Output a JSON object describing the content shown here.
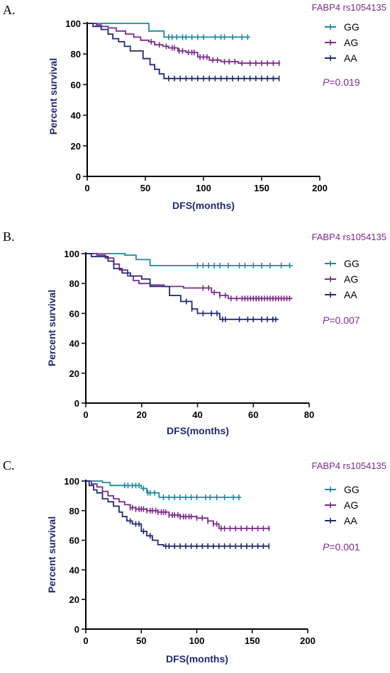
{
  "chart_data": [
    {
      "type": "line",
      "panel": "A.",
      "legend_title": "FABP4 rs1054135",
      "p_prefix": "P",
      "p_value": "=0.019",
      "xlabel": "DFS(months)",
      "ylabel": "Percent survival",
      "xlim": [
        0,
        200
      ],
      "ylim": [
        0,
        100
      ],
      "xticks": [
        0,
        50,
        100,
        150,
        200
      ],
      "yticks": [
        0,
        20,
        40,
        60,
        80,
        100
      ],
      "series": [
        {
          "name": "GG",
          "color": "#1b8a9a",
          "steps": [
            [
              0,
              100
            ],
            [
              53,
              100
            ],
            [
              53,
              95
            ],
            [
              66,
              95
            ],
            [
              66,
              91
            ],
            [
              140,
              91
            ]
          ],
          "censor": [
            70,
            73,
            77,
            82,
            85,
            90,
            95,
            100,
            110,
            115,
            118,
            125,
            133,
            138
          ]
        },
        {
          "name": "AG",
          "color": "#7b2a8a",
          "steps": [
            [
              0,
              100
            ],
            [
              8,
              100
            ],
            [
              8,
              99
            ],
            [
              12,
              99
            ],
            [
              12,
              98
            ],
            [
              18,
              98
            ],
            [
              18,
              97
            ],
            [
              25,
              97
            ],
            [
              25,
              95
            ],
            [
              33,
              95
            ],
            [
              33,
              93
            ],
            [
              40,
              93
            ],
            [
              40,
              91
            ],
            [
              46,
              91
            ],
            [
              46,
              89
            ],
            [
              53,
              89
            ],
            [
              53,
              88
            ],
            [
              58,
              88
            ],
            [
              58,
              86
            ],
            [
              65,
              86
            ],
            [
              65,
              85
            ],
            [
              70,
              85
            ],
            [
              70,
              84
            ],
            [
              78,
              84
            ],
            [
              78,
              82
            ],
            [
              85,
              82
            ],
            [
              85,
              81
            ],
            [
              95,
              81
            ],
            [
              95,
              78
            ],
            [
              105,
              78
            ],
            [
              105,
              76
            ],
            [
              115,
              76
            ],
            [
              115,
              75
            ],
            [
              130,
              75
            ],
            [
              130,
              74
            ],
            [
              166,
              74
            ]
          ],
          "censor": [
            55,
            62,
            68,
            73,
            75,
            79,
            82,
            87,
            90,
            92,
            97,
            100,
            103,
            108,
            112,
            118,
            122,
            127,
            133,
            140,
            145,
            150,
            155,
            160,
            165
          ]
        },
        {
          "name": "AA",
          "color": "#1f2a6e",
          "steps": [
            [
              0,
              100
            ],
            [
              5,
              100
            ],
            [
              5,
              98
            ],
            [
              12,
              98
            ],
            [
              12,
              96
            ],
            [
              18,
              96
            ],
            [
              18,
              93
            ],
            [
              22,
              93
            ],
            [
              22,
              90
            ],
            [
              27,
              90
            ],
            [
              27,
              88
            ],
            [
              32,
              88
            ],
            [
              32,
              85
            ],
            [
              37,
              85
            ],
            [
              37,
              82
            ],
            [
              48,
              82
            ],
            [
              48,
              77
            ],
            [
              54,
              77
            ],
            [
              54,
              73
            ],
            [
              58,
              73
            ],
            [
              58,
              70
            ],
            [
              62,
              70
            ],
            [
              62,
              67
            ],
            [
              66,
              67
            ],
            [
              66,
              64
            ],
            [
              165,
              64
            ]
          ],
          "censor": [
            70,
            75,
            80,
            85,
            90,
            95,
            100,
            105,
            110,
            115,
            120,
            125,
            130,
            135,
            140,
            145,
            150,
            155,
            160,
            165
          ]
        }
      ]
    },
    {
      "type": "line",
      "panel": "B.",
      "legend_title": "FABP4 rs1054135",
      "p_prefix": "P",
      "p_value": "=0.007",
      "xlabel": "DFS(months)",
      "ylabel": "Percent survival",
      "xlim": [
        0,
        80
      ],
      "ylim": [
        0,
        100
      ],
      "xticks": [
        0,
        20,
        40,
        60,
        80
      ],
      "yticks": [
        0,
        20,
        40,
        60,
        80,
        100
      ],
      "series": [
        {
          "name": "GG",
          "color": "#1b8a9a",
          "steps": [
            [
              0,
              100
            ],
            [
              14,
              100
            ],
            [
              14,
              99
            ],
            [
              18,
              99
            ],
            [
              18,
              96
            ],
            [
              23,
              96
            ],
            [
              23,
              92
            ],
            [
              74,
              92
            ]
          ],
          "censor": [
            40,
            42,
            44,
            46,
            48,
            51,
            55,
            57,
            60,
            63,
            66,
            70,
            73
          ]
        },
        {
          "name": "AG",
          "color": "#7b2a8a",
          "steps": [
            [
              0,
              100
            ],
            [
              4,
              100
            ],
            [
              4,
              99
            ],
            [
              7,
              99
            ],
            [
              7,
              97
            ],
            [
              10,
              97
            ],
            [
              10,
              93
            ],
            [
              12,
              93
            ],
            [
              12,
              89
            ],
            [
              15,
              89
            ],
            [
              15,
              85
            ],
            [
              17,
              85
            ],
            [
              17,
              82
            ],
            [
              19,
              82
            ],
            [
              19,
              80
            ],
            [
              23,
              80
            ],
            [
              23,
              79
            ],
            [
              28,
              79
            ],
            [
              28,
              78
            ],
            [
              35,
              78
            ],
            [
              35,
              77
            ],
            [
              45,
              77
            ],
            [
              45,
              74
            ],
            [
              48,
              74
            ],
            [
              48,
              72
            ],
            [
              51,
              72
            ],
            [
              51,
              70
            ],
            [
              74,
              70
            ]
          ],
          "censor": [
            42,
            44,
            46,
            48,
            50,
            52,
            54,
            56,
            57,
            58,
            59,
            60,
            61,
            62,
            63,
            64,
            65,
            66,
            67,
            68,
            69,
            70,
            71,
            72,
            73
          ]
        },
        {
          "name": "AA",
          "color": "#1f2a6e",
          "steps": [
            [
              0,
              100
            ],
            [
              2,
              100
            ],
            [
              2,
              98
            ],
            [
              8,
              98
            ],
            [
              8,
              95
            ],
            [
              10,
              95
            ],
            [
              10,
              90
            ],
            [
              13,
              90
            ],
            [
              13,
              87
            ],
            [
              16,
              87
            ],
            [
              16,
              85
            ],
            [
              20,
              85
            ],
            [
              20,
              83
            ],
            [
              23,
              83
            ],
            [
              23,
              78
            ],
            [
              30,
              78
            ],
            [
              30,
              72
            ],
            [
              34,
              72
            ],
            [
              34,
              68
            ],
            [
              38,
              68
            ],
            [
              38,
              63
            ],
            [
              40,
              63
            ],
            [
              40,
              60
            ],
            [
              48,
              60
            ],
            [
              48,
              56
            ],
            [
              69,
              56
            ]
          ],
          "censor": [
            36,
            38,
            42,
            45,
            47,
            49,
            50,
            55,
            58,
            60,
            63,
            65,
            67,
            68
          ]
        }
      ]
    },
    {
      "type": "line",
      "panel": "C.",
      "legend_title": "FABP4 rs1054135",
      "p_prefix": "P",
      "p_value": "=0.001",
      "xlabel": "DFS(months)",
      "ylabel": "Percent survival",
      "xlim": [
        0,
        200
      ],
      "ylim": [
        0,
        100
      ],
      "xticks": [
        0,
        50,
        100,
        150,
        200
      ],
      "yticks": [
        0,
        20,
        40,
        60,
        80,
        100
      ],
      "series": [
        {
          "name": "GG",
          "color": "#1b8a9a",
          "steps": [
            [
              0,
              100
            ],
            [
              15,
              100
            ],
            [
              15,
              99
            ],
            [
              22,
              99
            ],
            [
              22,
              97
            ],
            [
              50,
              97
            ],
            [
              50,
              95
            ],
            [
              55,
              95
            ],
            [
              55,
              92
            ],
            [
              66,
              92
            ],
            [
              66,
              89
            ],
            [
              140,
              89
            ]
          ],
          "censor": [
            35,
            38,
            42,
            45,
            48,
            52,
            56,
            58,
            62,
            70,
            75,
            80,
            85,
            90,
            95,
            100,
            108,
            112,
            118,
            125,
            133,
            138
          ]
        },
        {
          "name": "AG",
          "color": "#7b2a8a",
          "steps": [
            [
              0,
              100
            ],
            [
              5,
              100
            ],
            [
              5,
              98
            ],
            [
              10,
              98
            ],
            [
              10,
              96
            ],
            [
              15,
              96
            ],
            [
              15,
              93
            ],
            [
              20,
              93
            ],
            [
              20,
              90
            ],
            [
              25,
              90
            ],
            [
              25,
              88
            ],
            [
              30,
              88
            ],
            [
              30,
              86
            ],
            [
              35,
              86
            ],
            [
              35,
              84
            ],
            [
              40,
              84
            ],
            [
              40,
              82
            ],
            [
              45,
              82
            ],
            [
              45,
              81
            ],
            [
              55,
              81
            ],
            [
              55,
              80
            ],
            [
              65,
              80
            ],
            [
              65,
              79
            ],
            [
              75,
              79
            ],
            [
              75,
              77
            ],
            [
              85,
              77
            ],
            [
              85,
              76
            ],
            [
              100,
              76
            ],
            [
              100,
              75
            ],
            [
              110,
              75
            ],
            [
              110,
              73
            ],
            [
              115,
              73
            ],
            [
              115,
              71
            ],
            [
              120,
              71
            ],
            [
              120,
              68
            ],
            [
              166,
              68
            ]
          ],
          "censor": [
            40,
            42,
            45,
            48,
            50,
            52,
            55,
            58,
            60,
            63,
            65,
            68,
            70,
            72,
            75,
            78,
            80,
            83,
            85,
            88,
            90,
            93,
            95,
            100,
            105,
            110,
            115,
            118,
            122,
            125,
            130,
            135,
            140,
            145,
            150,
            155,
            160,
            165
          ]
        },
        {
          "name": "AA",
          "color": "#1f2a6e",
          "steps": [
            [
              0,
              100
            ],
            [
              3,
              100
            ],
            [
              3,
              97
            ],
            [
              7,
              97
            ],
            [
              7,
              94
            ],
            [
              10,
              94
            ],
            [
              10,
              92
            ],
            [
              15,
              92
            ],
            [
              15,
              88
            ],
            [
              20,
              88
            ],
            [
              20,
              86
            ],
            [
              25,
              86
            ],
            [
              25,
              83
            ],
            [
              30,
              83
            ],
            [
              30,
              79
            ],
            [
              33,
              79
            ],
            [
              33,
              76
            ],
            [
              37,
              76
            ],
            [
              37,
              73
            ],
            [
              42,
              73
            ],
            [
              42,
              71
            ],
            [
              50,
              71
            ],
            [
              50,
              66
            ],
            [
              55,
              66
            ],
            [
              55,
              63
            ],
            [
              60,
              63
            ],
            [
              60,
              60
            ],
            [
              65,
              60
            ],
            [
              65,
              57
            ],
            [
              70,
              57
            ],
            [
              70,
              56
            ],
            [
              165,
              56
            ]
          ],
          "censor": [
            40,
            45,
            48,
            52,
            58,
            72,
            75,
            80,
            85,
            90,
            95,
            100,
            105,
            110,
            115,
            120,
            125,
            130,
            135,
            140,
            145,
            150,
            155,
            160,
            165
          ]
        }
      ]
    }
  ]
}
